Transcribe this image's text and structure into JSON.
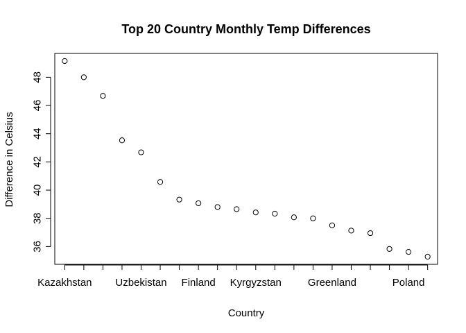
{
  "chart_data": {
    "type": "scatter",
    "title": "Top 20 Country Monthly Temp Differences",
    "xlabel": "Country",
    "ylabel": "Difference in Celsius",
    "x_index": [
      1,
      2,
      3,
      4,
      5,
      6,
      7,
      8,
      9,
      10,
      11,
      12,
      13,
      14,
      15,
      16,
      17,
      18,
      19,
      20
    ],
    "y": [
      49.15,
      48.0,
      46.68,
      43.53,
      42.68,
      40.58,
      39.33,
      39.07,
      38.8,
      38.65,
      38.42,
      38.33,
      38.07,
      38.0,
      37.5,
      37.13,
      36.95,
      35.83,
      35.62,
      35.28
    ],
    "x_tick_labels": [
      {
        "index": 1,
        "label": "Kazakhstan"
      },
      {
        "index": 5,
        "label": "Uzbekistan"
      },
      {
        "index": 8,
        "label": "Finland"
      },
      {
        "index": 11,
        "label": "Kyrgyzstan"
      },
      {
        "index": 15,
        "label": "Greenland"
      },
      {
        "index": 19,
        "label": "Poland"
      }
    ],
    "x_tick_count": 20,
    "y_ticks": [
      36,
      38,
      40,
      42,
      44,
      46,
      48
    ],
    "xlim": [
      0.48,
      20.52
    ],
    "ylim": [
      34.74,
      49.69
    ],
    "grid": false,
    "legend": "none",
    "marker": "open-circle",
    "colors": {
      "point": "#000000",
      "axis": "#000000",
      "background": "#ffffff"
    }
  }
}
